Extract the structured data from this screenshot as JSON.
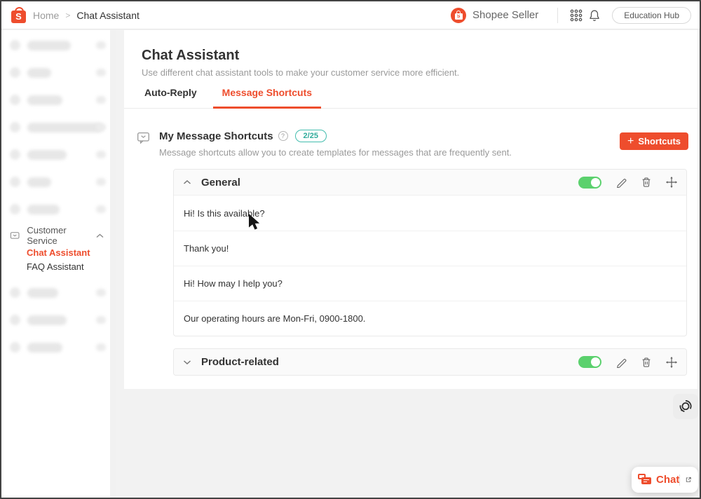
{
  "topbar": {
    "breadcrumb": {
      "home": "Home",
      "separator": ">",
      "current": "Chat Assistant"
    },
    "account_name": "Shopee Seller",
    "education_hub_label": "Education Hub",
    "logo_letter": "S"
  },
  "sidebar": {
    "customer_service_label": "Customer Service",
    "items": [
      {
        "label": "Chat Assistant",
        "active": true
      },
      {
        "label": "FAQ Assistant",
        "active": false
      }
    ]
  },
  "main": {
    "page_title": "Chat Assistant",
    "page_subtitle": "Use different chat assistant tools to make your customer service more efficient.",
    "tabs": [
      {
        "label": "Auto-Reply",
        "active": false
      },
      {
        "label": "Message Shortcuts",
        "active": true
      }
    ],
    "shortcuts": {
      "title": "My Message Shortcuts",
      "help_glyph": "?",
      "count_badge": "2/25",
      "description": "Message shortcuts allow you to create templates for messages that are frequently sent.",
      "add_button_label": "Shortcuts",
      "add_button_plus": "+"
    },
    "groups": [
      {
        "name": "General",
        "expanded": true,
        "enabled": true,
        "messages": [
          "Hi! Is this available?",
          "Thank you!",
          "Hi! How may I help you?",
          "Our operating hours are Mon-Fri, 0900-1800."
        ]
      },
      {
        "name": "Product-related",
        "expanded": false,
        "enabled": true,
        "messages": []
      }
    ]
  },
  "floating": {
    "chat_button_label": "Chat"
  },
  "colors": {
    "accent": "#ee4d2d",
    "toggle_on": "#5bd16d",
    "count_badge": "#2eab9b"
  }
}
